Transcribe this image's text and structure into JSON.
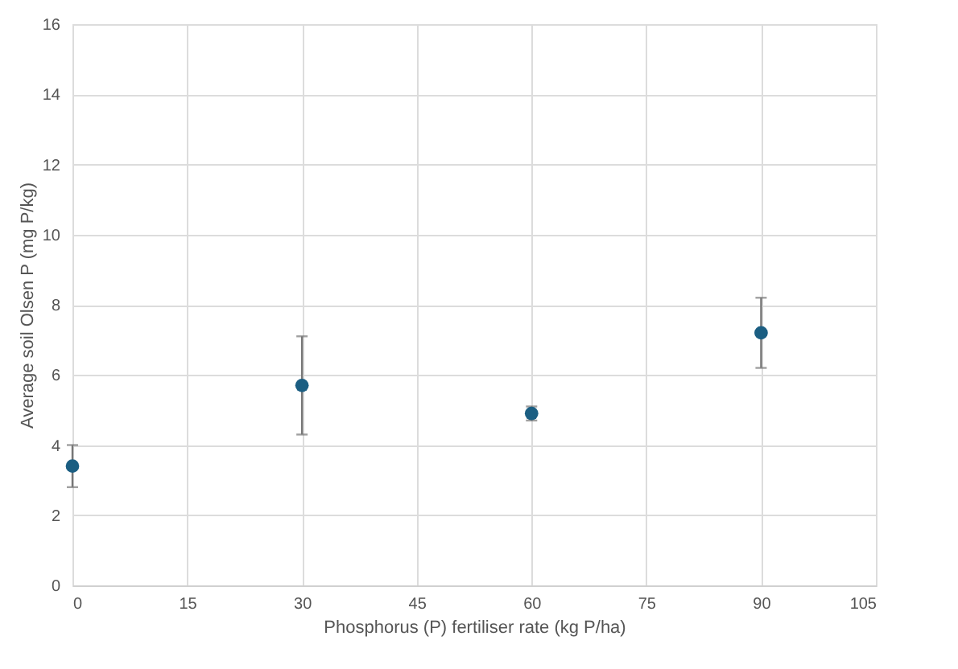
{
  "chart_data": {
    "type": "scatter",
    "xlabel": "Phosphorus (P)  fertiliser rate (kg P/ha)",
    "ylabel": "Average soil Olsen P (mg P/kg)",
    "x": [
      0,
      30,
      60,
      90
    ],
    "series": [
      {
        "color": "#1b5e82",
        "values": [
          3.4,
          5.7,
          4.9,
          7.2
        ],
        "errors": [
          0.6,
          1.4,
          0.2,
          1.0
        ]
      }
    ],
    "xlim": [
      0,
      105
    ],
    "xticks": [
      0,
      15,
      30,
      45,
      60,
      75,
      90,
      105
    ],
    "ylim": [
      0,
      16
    ],
    "yticks": [
      0,
      2,
      4,
      6,
      8,
      10,
      12,
      14,
      16
    ],
    "grid": true,
    "marker": "circle"
  }
}
